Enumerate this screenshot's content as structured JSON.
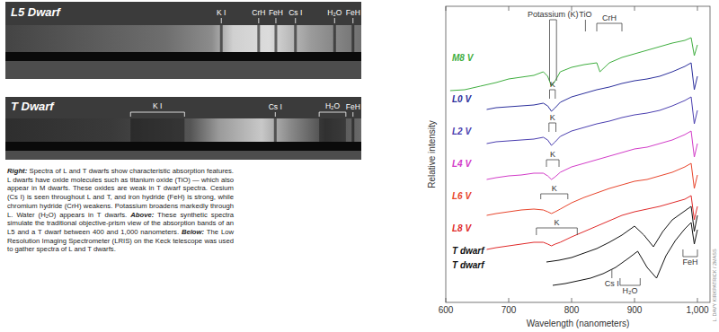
{
  "prism_panels": [
    {
      "title": "L5 Dwarf",
      "xlim": [
        400,
        1000
      ],
      "features": [
        {
          "label": "K I",
          "x": 764
        },
        {
          "label": "CrH",
          "x": 827
        },
        {
          "label": "FeH",
          "x": 856
        },
        {
          "label": "Cs I",
          "x": 889
        },
        {
          "label": "H₂O",
          "x": 955
        },
        {
          "label": "FeH",
          "x": 986
        }
      ]
    },
    {
      "title": "T Dwarf",
      "xlim": [
        400,
        1000
      ],
      "features": [
        {
          "label": "K I",
          "x": [
            611,
            702
          ]
        },
        {
          "label": "Cs I",
          "x": 855
        },
        {
          "label": "H₂O",
          "x": [
            929,
            974
          ]
        },
        {
          "label": "FeH",
          "x": 986
        }
      ]
    }
  ],
  "caption": [
    {
      "lead": "Right:",
      "text": "Spectra of L and T dwarfs show characteristic absorption features. L dwarfs have oxide molecules such as titanium oxide (TiO) — which also appear in M dwarfs. These oxides are weak in T dwarf spectra. Cesium (Cs I) is seen throughout L and T, and iron hydride (FeH) is strong, while chromium hydride (CrH) weakens. Potassium broadens markedly through L. Water (H₂O) appears in T dwarfs."
    },
    {
      "lead": "Above:",
      "text": "These synthetic spectra simulate the traditional objective-prism view of the absorption bands of an L5 and a T dwarf between 400 and 1,000 nanometers."
    },
    {
      "lead": "Below:",
      "text": "The Low Resolution Imaging Spectrometer (LRIS) on the Keck telescope was used to gather spectra of L and T dwarfs."
    }
  ],
  "credit": "L. DAVY KIRKPATRICK / 2MASS",
  "chart_data": {
    "type": "line",
    "x_label": "Wavelength (nanometers)",
    "y_label": "Relative intensity",
    "xlim": [
      600,
      1020
    ],
    "xticks": [
      600,
      700,
      800,
      900,
      {
        "value": 1000,
        "label": "1,000"
      }
    ],
    "ylim": [
      0,
      33
    ],
    "tick_labels": "x",
    "grid": false,
    "series": [
      {
        "name": "M8 V",
        "color": "#3fae3f",
        "x": [
          607,
          630,
          655,
          680,
          700,
          720,
          740,
          755,
          762,
          768,
          774,
          782,
          800,
          820,
          840,
          845,
          860,
          880,
          900,
          920,
          940,
          960,
          980,
          990,
          995,
          1000
        ],
        "values": [
          23.6,
          23.7,
          24.1,
          24.5,
          24.9,
          25.1,
          25.3,
          25.7,
          25.2,
          24.1,
          24.7,
          25.7,
          26.2,
          26.5,
          26.7,
          25.7,
          26.7,
          27.3,
          27.7,
          28.1,
          28.5,
          28.9,
          29.2,
          29.5,
          27.5,
          28.7
        ]
      },
      {
        "name": "L0 V",
        "color": "#2b2f9c",
        "x": [
          665,
          680,
          700,
          720,
          740,
          755,
          762,
          768,
          774,
          782,
          800,
          820,
          840,
          860,
          880,
          900,
          920,
          940,
          960,
          980,
          990,
          995,
          1000
        ],
        "values": [
          21.5,
          21.7,
          21.8,
          21.9,
          22.0,
          22.2,
          21.9,
          21.3,
          21.7,
          22.3,
          22.9,
          23.3,
          23.7,
          24.0,
          24.4,
          24.7,
          24.9,
          25.2,
          25.7,
          26.3,
          26.7,
          23.7,
          25.2
        ]
      },
      {
        "name": "L2 V",
        "color": "#4b3fb0",
        "x": [
          665,
          680,
          700,
          720,
          740,
          755,
          762,
          768,
          774,
          782,
          800,
          820,
          840,
          860,
          880,
          900,
          920,
          940,
          960,
          980,
          990,
          995,
          1000
        ],
        "values": [
          17.7,
          17.9,
          18.0,
          18.1,
          18.2,
          18.4,
          18.1,
          17.5,
          17.9,
          18.5,
          19.1,
          19.5,
          19.9,
          20.2,
          20.6,
          20.9,
          21.1,
          21.4,
          21.9,
          22.5,
          22.9,
          19.9,
          21.4
        ]
      },
      {
        "name": "L4 V",
        "color": "#d23cc8",
        "x": [
          665,
          680,
          700,
          720,
          740,
          755,
          762,
          768,
          774,
          782,
          800,
          820,
          840,
          860,
          880,
          900,
          920,
          940,
          960,
          980,
          990,
          995,
          1000
        ],
        "values": [
          13.7,
          13.9,
          14.1,
          14.2,
          14.4,
          14.4,
          14.1,
          13.7,
          14.0,
          14.5,
          15.1,
          15.5,
          15.9,
          16.3,
          16.7,
          17.1,
          17.3,
          17.7,
          18.1,
          18.7,
          19.1,
          16.2,
          17.7
        ]
      },
      {
        "name": "L6 V",
        "color": "#e8452c",
        "x": [
          665,
          680,
          700,
          720,
          740,
          755,
          762,
          768,
          774,
          782,
          800,
          820,
          840,
          860,
          880,
          900,
          920,
          940,
          960,
          980,
          990,
          995,
          1000
        ],
        "values": [
          9.7,
          9.9,
          10.1,
          10.3,
          10.4,
          10.3,
          10.1,
          9.9,
          10.1,
          10.4,
          11.1,
          11.7,
          12.2,
          12.7,
          13.1,
          13.5,
          13.7,
          14.1,
          14.5,
          15.1,
          15.5,
          12.7,
          14.2
        ]
      },
      {
        "name": "L8 V",
        "color": "#e02a2a",
        "x": [
          665,
          680,
          700,
          720,
          740,
          755,
          762,
          768,
          774,
          782,
          800,
          820,
          840,
          860,
          880,
          900,
          920,
          940,
          960,
          980,
          990,
          995,
          1000
        ],
        "values": [
          5.9,
          6.1,
          6.3,
          6.5,
          6.7,
          6.7,
          6.5,
          6.3,
          6.5,
          6.7,
          7.3,
          7.9,
          8.5,
          9.1,
          9.7,
          10.1,
          10.4,
          10.7,
          11.1,
          11.5,
          11.9,
          9.2,
          10.7
        ]
      },
      {
        "name": "T dwarf",
        "color": "#111111",
        "x": [
          760,
          780,
          800,
          820,
          840,
          860,
          880,
          900,
          915,
          930,
          945,
          960,
          980,
          990,
          995,
          1000
        ],
        "values": [
          4.5,
          4.7,
          5.0,
          5.5,
          6.0,
          6.7,
          7.5,
          8.5,
          7.5,
          6.2,
          7.9,
          9.2,
          10.2,
          10.7,
          7.9,
          9.7
        ]
      },
      {
        "name": "T dwarf",
        "color": "#111111",
        "x": [
          770,
          790,
          810,
          830,
          850,
          870,
          890,
          905,
          920,
          935,
          950,
          965,
          980,
          990,
          995,
          1000
        ],
        "values": [
          1.9,
          2.1,
          2.4,
          2.7,
          3.2,
          3.9,
          4.9,
          5.7,
          3.9,
          2.7,
          5.2,
          6.9,
          8.2,
          8.9,
          6.5,
          8.1
        ]
      }
    ],
    "annotations": [
      {
        "text": "Potassium (K)",
        "x": [
          765,
          776
        ],
        "y": [
          24.7,
          31.5
        ]
      },
      {
        "text": "TiO",
        "x": 822,
        "y": [
          30.2,
          31.5
        ]
      },
      {
        "text": "CrH",
        "x": [
          840,
          880
        ],
        "y": [
          30.2,
          31.1
        ]
      },
      {
        "text": "K",
        "x": [
          765,
          774
        ],
        "y": [
          22.7,
          23.7
        ]
      },
      {
        "text": "K",
        "x": [
          764,
          775
        ],
        "y": [
          19.0,
          20.0
        ]
      },
      {
        "text": "K",
        "x": [
          760,
          780
        ],
        "y": [
          15.1,
          15.9
        ]
      },
      {
        "text": "K",
        "x": [
          751,
          794
        ],
        "y": [
          11.5,
          12.1
        ]
      },
      {
        "text": "K",
        "x": [
          744,
          809
        ],
        "y": [
          7.5,
          8.3
        ]
      },
      {
        "text": "Cs I",
        "x": 864,
        "y": [
          3.7,
          2.7
        ]
      },
      {
        "text": "H₂O",
        "x": [
          877,
          909
        ],
        "y": [
          2.7,
          1.9
        ]
      },
      {
        "text": "FeH",
        "x": [
          977,
          1000
        ],
        "y": [
          5.9,
          5.1
        ]
      }
    ]
  }
}
